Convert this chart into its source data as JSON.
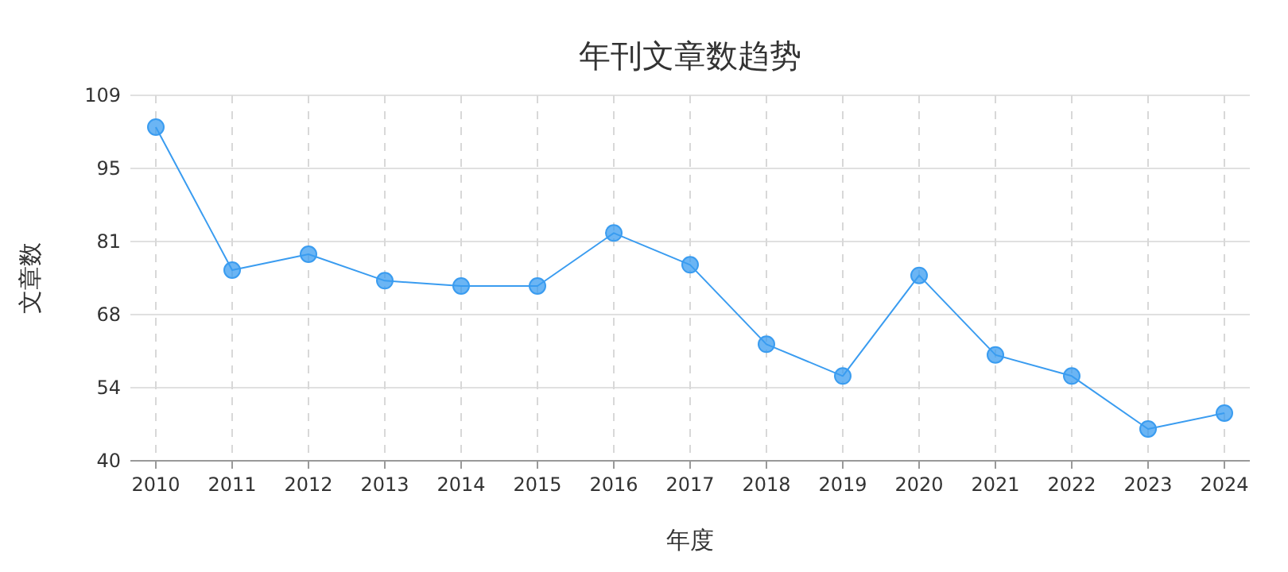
{
  "chart_data": {
    "type": "line",
    "title": "年刊文章数趋势",
    "xlabel": "年度",
    "ylabel": "文章数",
    "categories": [
      "2010",
      "2011",
      "2012",
      "2013",
      "2014",
      "2015",
      "2016",
      "2017",
      "2018",
      "2019",
      "2020",
      "2021",
      "2022",
      "2023",
      "2024"
    ],
    "series": [
      {
        "color": "#3a9cf0",
        "values": [
          103,
          76,
          79,
          74,
          73,
          73,
          83,
          77,
          62,
          56,
          75,
          60,
          56,
          46,
          49
        ]
      }
    ],
    "ylim": [
      40,
      109
    ],
    "yticks": [
      40,
      {
        "value": 53.8,
        "label": "54"
      },
      {
        "value": 67.6,
        "label": "68"
      },
      {
        "value": 81.4,
        "label": "81"
      },
      {
        "value": 95.2,
        "label": "95"
      },
      109
    ],
    "grid": true,
    "marker": "circle",
    "line_style": "solid"
  }
}
